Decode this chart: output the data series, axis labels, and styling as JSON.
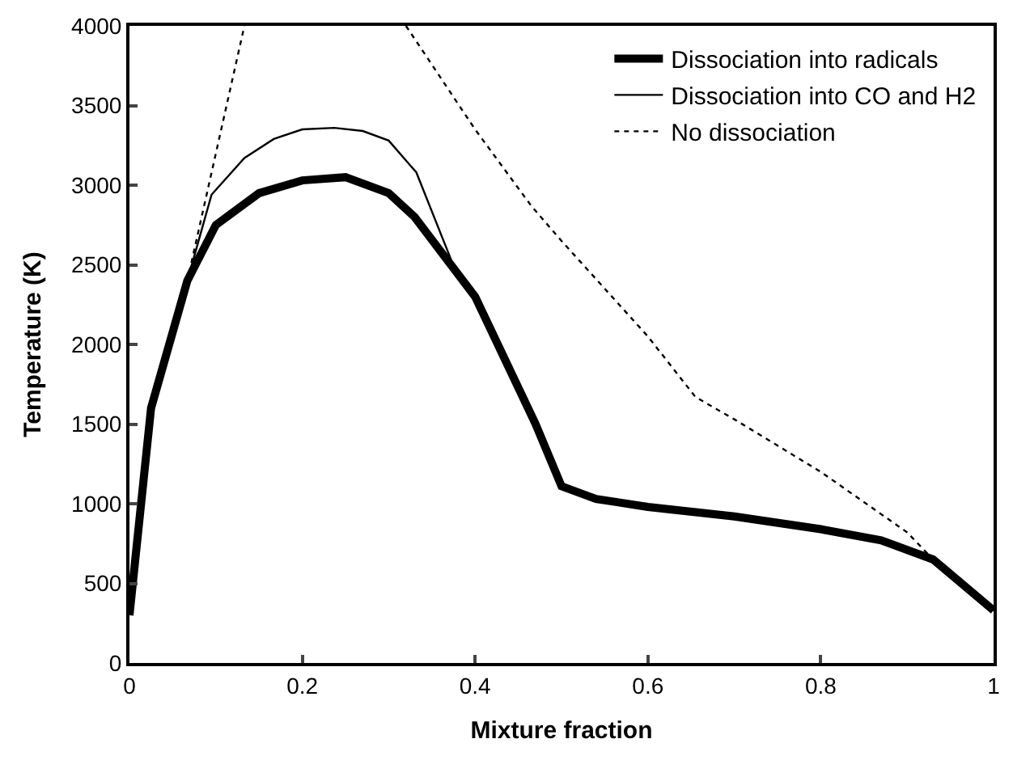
{
  "chart_data": {
    "type": "line",
    "xlabel": "Mixture fraction",
    "ylabel": "Temperature (K)",
    "xlim": [
      0,
      1
    ],
    "xticks": [
      0,
      0.2,
      0.4,
      0.6,
      0.8,
      1
    ],
    "ylim": [
      0,
      4000
    ],
    "yticks": [
      0,
      500,
      1000,
      1500,
      2000,
      2500,
      3000,
      3500,
      4000
    ],
    "legend": "top right",
    "marker": "none",
    "series": [
      {
        "name": "Dissociation into radicals",
        "color": "#000000",
        "line_style": "solid",
        "x": [
          0,
          0.025,
          0.067,
          0.1,
          0.15,
          0.2,
          0.25,
          0.3,
          0.33,
          0.4,
          0.47,
          0.5,
          0.54,
          0.6,
          0.7,
          0.8,
          0.87,
          0.93,
          1
        ],
        "values": [
          300,
          1600,
          2400,
          2750,
          2950,
          3030,
          3050,
          2950,
          2800,
          2300,
          1500,
          1110,
          1030,
          980,
          920,
          840,
          770,
          650,
          330
        ]
      },
      {
        "name": "Dissociation into CO and H2",
        "color": "#000000",
        "line_style": "solid",
        "x": [
          0,
          0.025,
          0.067,
          0.095,
          0.133,
          0.167,
          0.2,
          0.237,
          0.27,
          0.3,
          0.332,
          0.376,
          0.4,
          0.47,
          0.5,
          0.54,
          0.6,
          0.7,
          0.8,
          0.87,
          0.93,
          1
        ],
        "values": [
          300,
          1600,
          2400,
          2940,
          3170,
          3290,
          3350,
          3360,
          3340,
          3280,
          3080,
          2480,
          2300,
          1500,
          1110,
          1030,
          980,
          920,
          840,
          770,
          650,
          330
        ]
      },
      {
        "name": "No dissociation",
        "color": "#000000",
        "line_style": "dotted",
        "x": [
          0,
          0.025,
          0.067,
          0.1,
          0.133,
          0.2,
          0.32,
          0.4,
          0.465,
          0.5,
          0.6,
          0.655,
          0.7,
          0.8,
          0.9,
          0.93,
          1
        ],
        "values": [
          300,
          1600,
          2400,
          3200,
          4000,
          null,
          4000,
          3350,
          2870,
          2650,
          2050,
          1670,
          1530,
          1200,
          820,
          650,
          330
        ]
      }
    ]
  }
}
